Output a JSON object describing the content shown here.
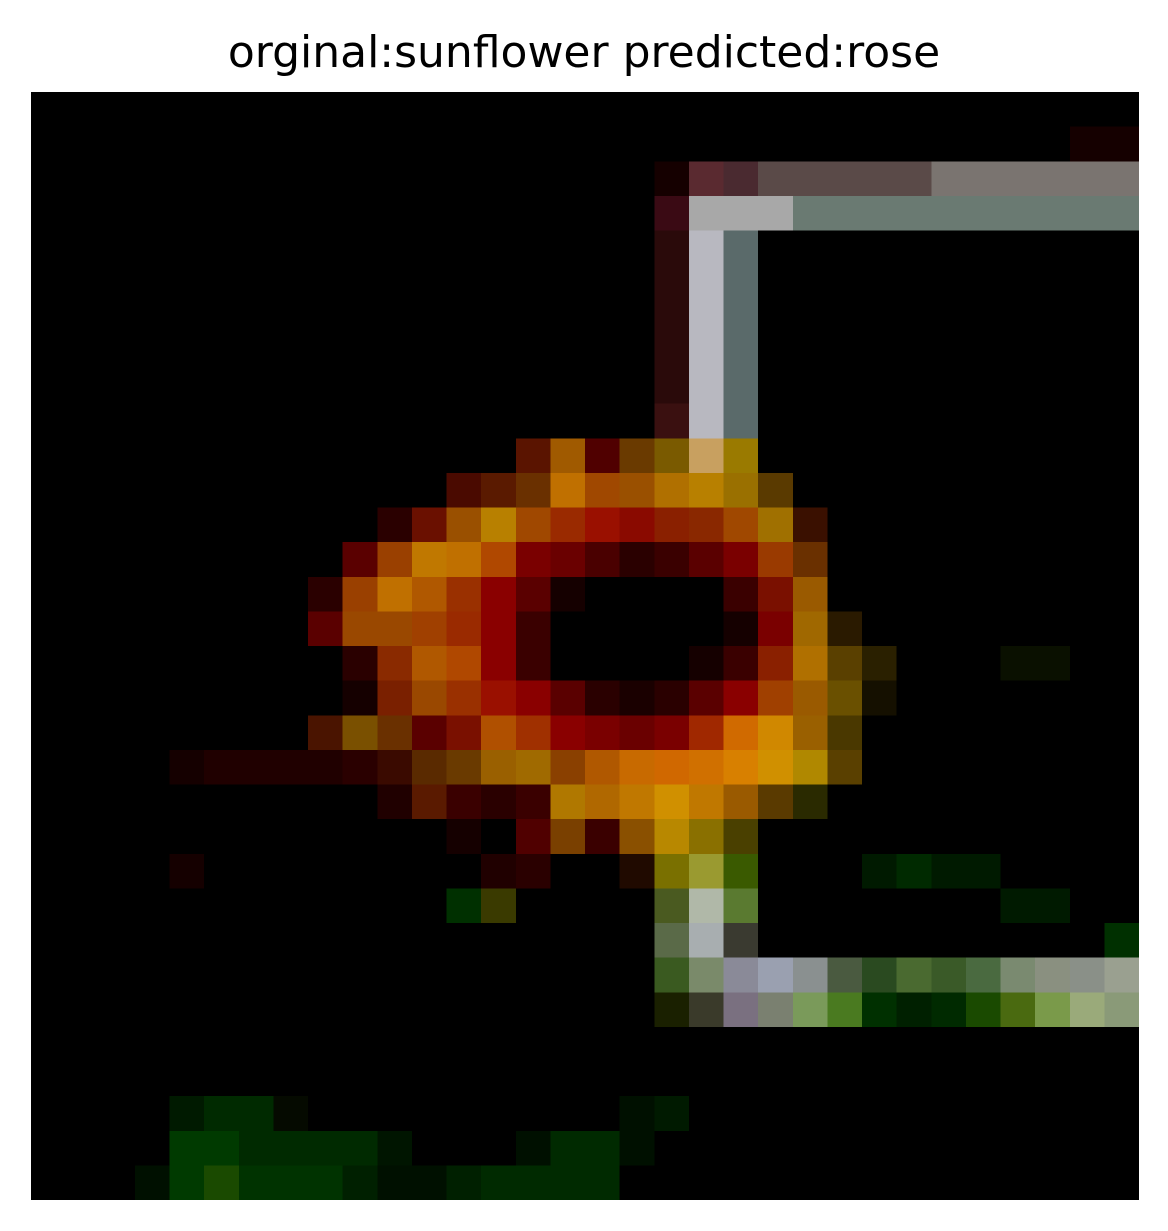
{
  "figure": {
    "title": "orginal:sunflower predicted:rose",
    "background": "#ffffff"
  },
  "image": {
    "content": "Low-resolution 32x32 pixelated photo of a sunflower-like bloom with a light frame on the right",
    "grid_cells": 32,
    "base_color": "#000000",
    "palette": {
      "orange": "#c07000",
      "orange_light": "#d48f00",
      "orange_dark": "#9a4a00",
      "red": "#8a0000",
      "red_dark": "#500000",
      "maroon": "#2a0000",
      "brown": "#6a2e00",
      "olive": "#6a5a00",
      "gray_light": "#b8b8c0",
      "gray": "#8a8a8a",
      "gray_dark": "#5a6a6a",
      "mauve": "#5a2a30",
      "green_dark": "#003000",
      "green": "#1a4a00",
      "green_olive": "#4a6a20",
      "green_light": "#8aa070",
      "black_red": "#150000"
    }
  }
}
